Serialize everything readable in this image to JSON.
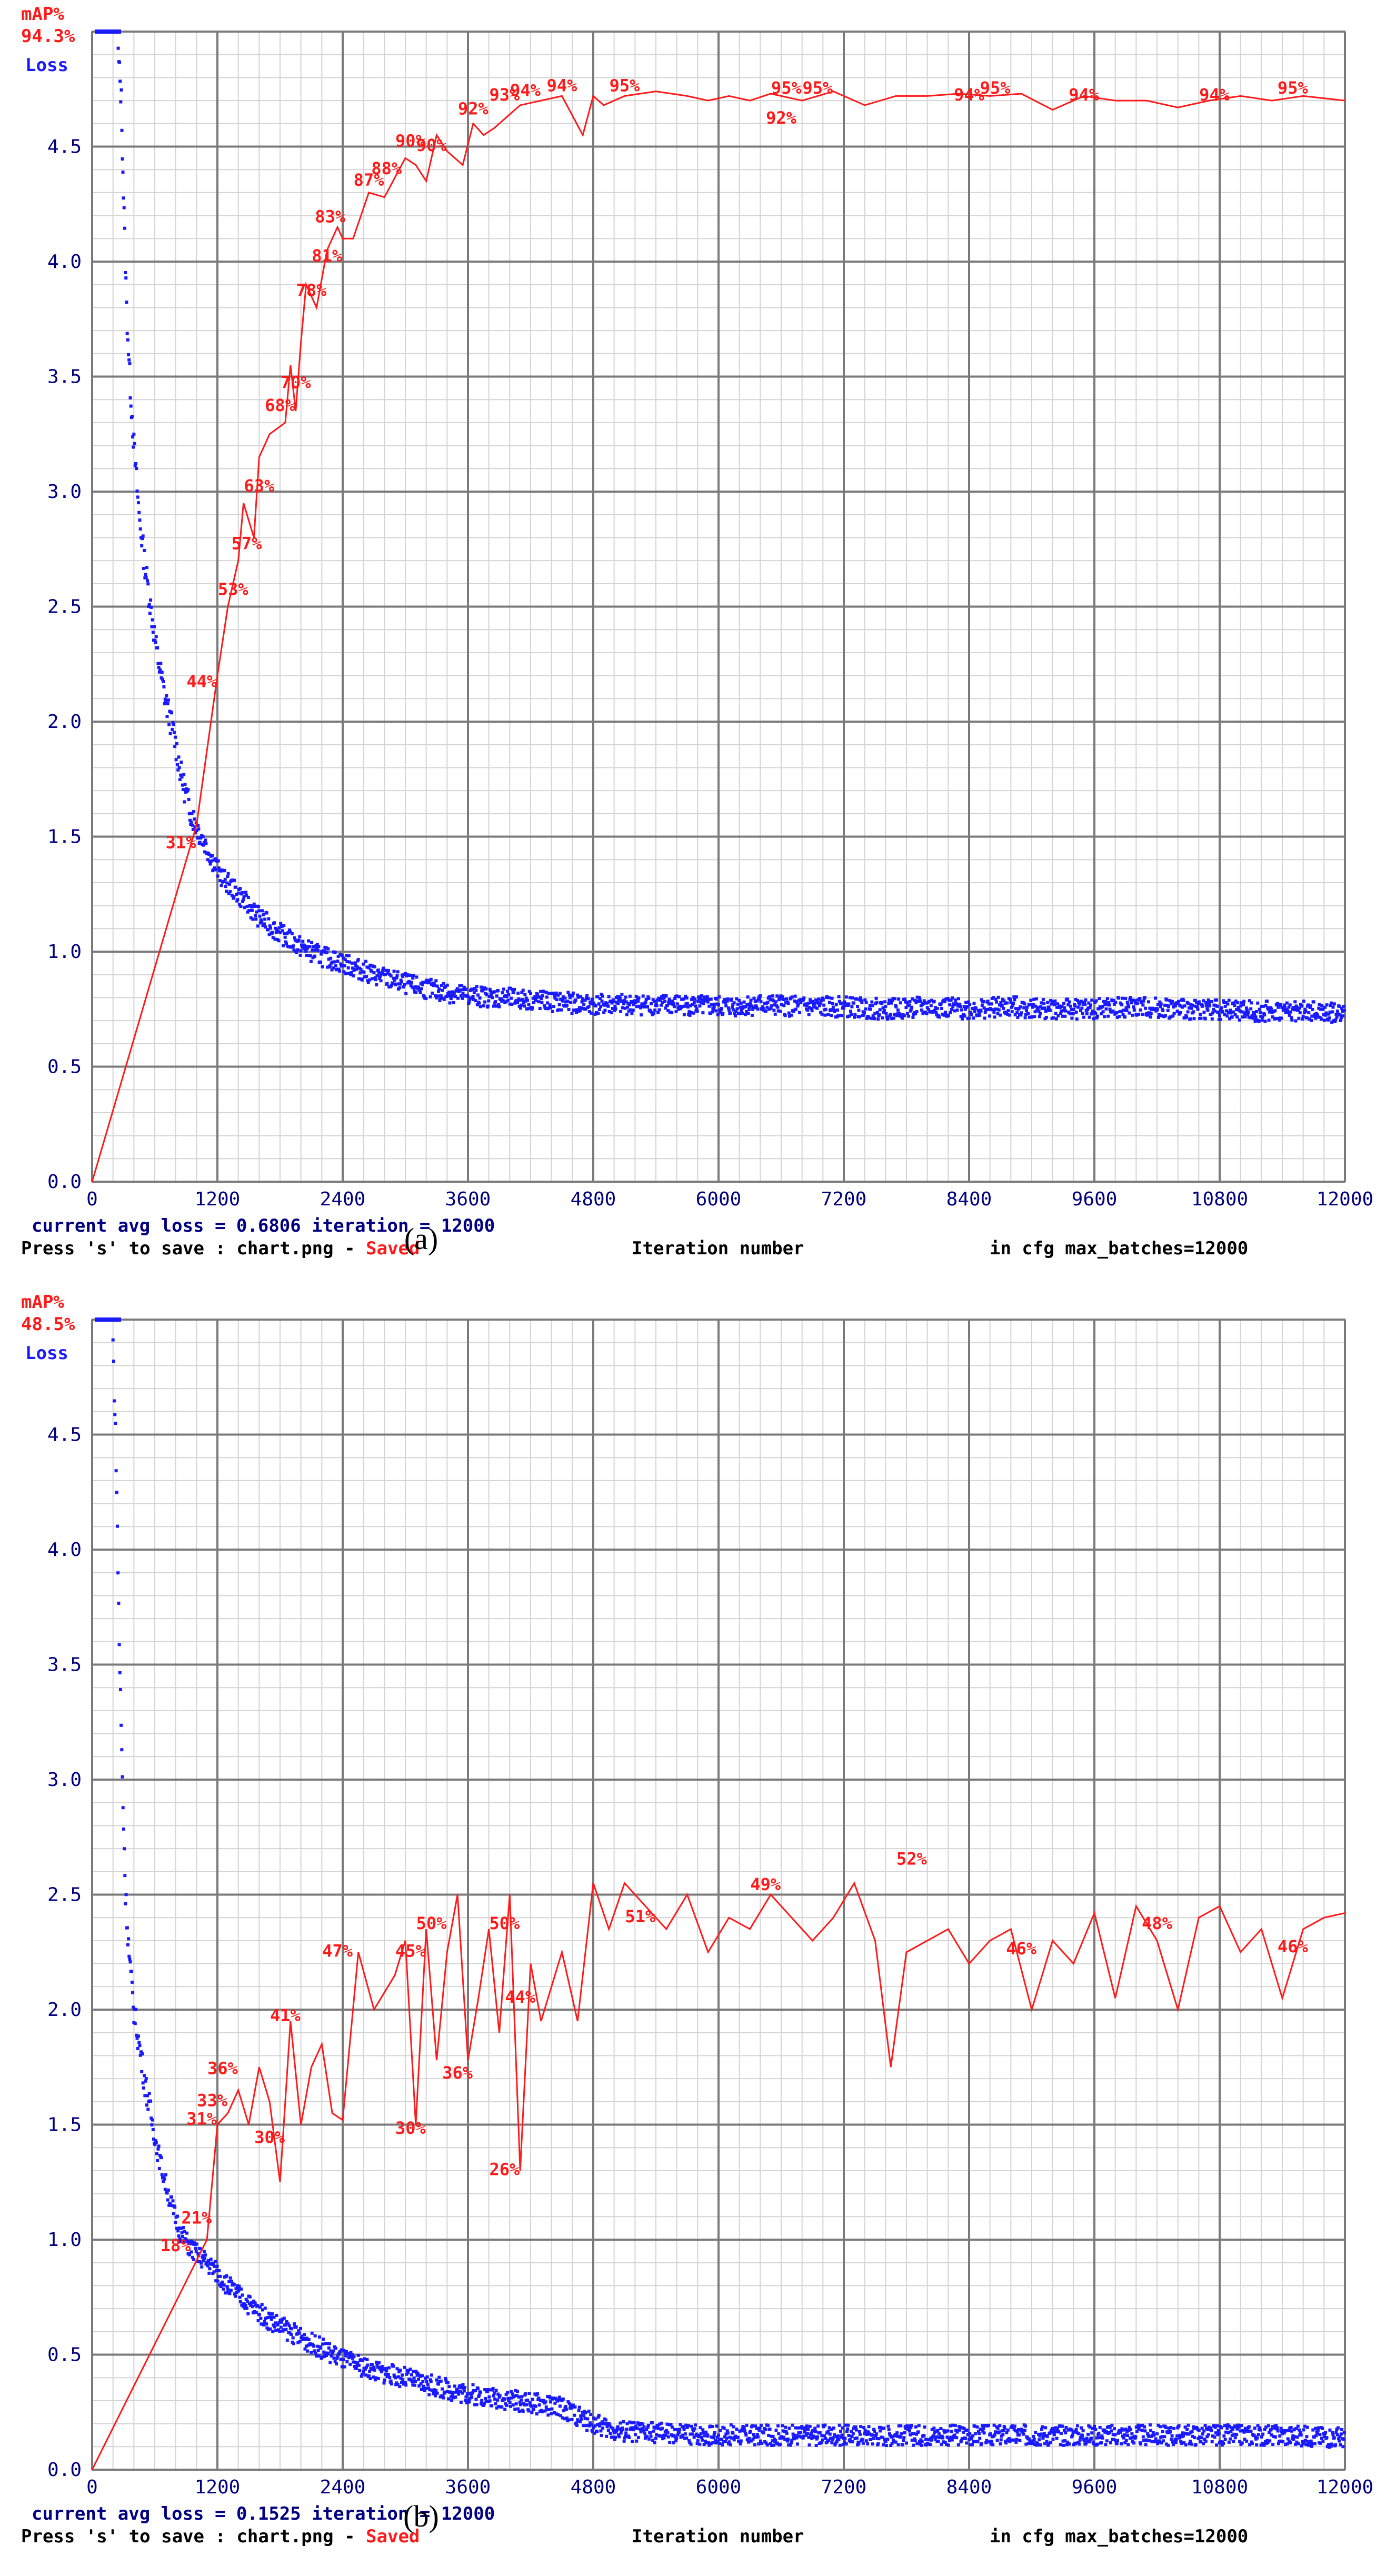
{
  "chart_data": [
    {
      "panel": "(a)",
      "type": "line",
      "title_map_label": "mAP%",
      "title_map_value": "94.3%",
      "loss_label": "Loss",
      "xlabel": "Iteration number",
      "xlim": [
        0,
        12000
      ],
      "ylim": [
        0,
        5.0
      ],
      "xticks": [
        0,
        1200,
        2400,
        3600,
        4800,
        6000,
        7200,
        8400,
        9600,
        10800,
        12000
      ],
      "yticks": [
        "0.0",
        "0.5",
        "1.0",
        "1.5",
        "2.0",
        "2.5",
        "3.0",
        "3.5",
        "4.0",
        "4.5"
      ],
      "loss_series": {
        "name": "Loss",
        "color": "#1a1aff",
        "x": [
          250,
          280,
          300,
          330,
          360,
          400,
          450,
          500,
          560,
          620,
          700,
          780,
          860,
          950,
          1050,
          1150,
          1250,
          1400,
          1600,
          1800,
          2000,
          2200,
          2400,
          2700,
          3000,
          3300,
          3600,
          3900,
          4200,
          4500,
          4800,
          5200,
          5600,
          6000,
          6400,
          6800,
          7200,
          7600,
          8000,
          8400,
          8800,
          9200,
          9600,
          10000,
          10400,
          10800,
          11200,
          11600,
          12000
        ],
        "y": [
          4.9,
          4.7,
          4.3,
          3.8,
          3.5,
          3.2,
          2.9,
          2.7,
          2.5,
          2.3,
          2.1,
          1.95,
          1.75,
          1.6,
          1.5,
          1.4,
          1.32,
          1.25,
          1.15,
          1.08,
          1.02,
          0.98,
          0.95,
          0.9,
          0.86,
          0.83,
          0.81,
          0.8,
          0.79,
          0.78,
          0.77,
          0.77,
          0.77,
          0.76,
          0.77,
          0.76,
          0.76,
          0.75,
          0.76,
          0.75,
          0.76,
          0.75,
          0.75,
          0.76,
          0.75,
          0.75,
          0.74,
          0.74,
          0.73
        ]
      },
      "map_series": {
        "name": "mAP%",
        "color": "#ff1a1a",
        "x": [
          0,
          1000,
          1200,
          1300,
          1400,
          1450,
          1550,
          1600,
          1700,
          1850,
          1900,
          1950,
          2000,
          2050,
          2150,
          2250,
          2350,
          2400,
          2500,
          2650,
          2800,
          3000,
          3100,
          3200,
          3300,
          3400,
          3550,
          3650,
          3750,
          3850,
          3950,
          4100,
          4300,
          4500,
          4700,
          4800,
          4900,
          5100,
          5400,
          5700,
          5900,
          6100,
          6300,
          6500,
          6800,
          7100,
          7400,
          7700,
          8000,
          8300,
          8600,
          8900,
          9200,
          9500,
          9800,
          10100,
          10400,
          10700,
          11000,
          11300,
          11600,
          12000
        ],
        "y": [
          0.0,
          1.55,
          2.2,
          2.5,
          2.7,
          2.95,
          2.8,
          3.15,
          3.25,
          3.3,
          3.55,
          3.35,
          3.65,
          3.9,
          3.8,
          4.05,
          4.15,
          4.1,
          4.1,
          4.3,
          4.28,
          4.45,
          4.42,
          4.35,
          4.55,
          4.48,
          4.42,
          4.6,
          4.55,
          4.58,
          4.62,
          4.68,
          4.7,
          4.72,
          4.55,
          4.72,
          4.68,
          4.72,
          4.74,
          4.72,
          4.7,
          4.72,
          4.7,
          4.73,
          4.7,
          4.74,
          4.68,
          4.72,
          4.72,
          4.73,
          4.72,
          4.73,
          4.66,
          4.72,
          4.7,
          4.7,
          4.67,
          4.7,
          4.72,
          4.7,
          4.72,
          4.7
        ]
      },
      "map_labels": [
        {
          "x": 850,
          "y": 1.45,
          "text": "31%"
        },
        {
          "x": 1050,
          "y": 2.15,
          "text": "44%"
        },
        {
          "x": 1350,
          "y": 2.55,
          "text": "53%"
        },
        {
          "x": 1480,
          "y": 2.75,
          "text": "57%"
        },
        {
          "x": 1600,
          "y": 3.0,
          "text": "63%"
        },
        {
          "x": 1800,
          "y": 3.35,
          "text": "68%"
        },
        {
          "x": 1950,
          "y": 3.45,
          "text": "70%"
        },
        {
          "x": 2100,
          "y": 3.85,
          "text": "78%"
        },
        {
          "x": 2250,
          "y": 4.0,
          "text": "81%"
        },
        {
          "x": 2280,
          "y": 4.17,
          "text": "83%"
        },
        {
          "x": 2650,
          "y": 4.33,
          "text": "87%"
        },
        {
          "x": 2820,
          "y": 4.38,
          "text": "88%"
        },
        {
          "x": 3050,
          "y": 4.5,
          "text": "90%"
        },
        {
          "x": 3250,
          "y": 4.48,
          "text": "90%"
        },
        {
          "x": 3650,
          "y": 4.64,
          "text": "92%"
        },
        {
          "x": 3950,
          "y": 4.7,
          "text": "93%"
        },
        {
          "x": 4150,
          "y": 4.72,
          "text": "94%"
        },
        {
          "x": 4500,
          "y": 4.74,
          "text": "94%"
        },
        {
          "x": 5100,
          "y": 4.74,
          "text": "95%"
        },
        {
          "x": 6650,
          "y": 4.73,
          "text": "95%"
        },
        {
          "x": 6950,
          "y": 4.73,
          "text": "95%"
        },
        {
          "x": 6600,
          "y": 4.6,
          "text": "92%"
        },
        {
          "x": 8400,
          "y": 4.7,
          "text": "94%"
        },
        {
          "x": 8650,
          "y": 4.73,
          "text": "95%"
        },
        {
          "x": 9500,
          "y": 4.7,
          "text": "94%"
        },
        {
          "x": 10750,
          "y": 4.7,
          "text": "94%"
        },
        {
          "x": 11500,
          "y": 4.73,
          "text": "95%"
        }
      ],
      "status_loss": "current avg loss = 0.6806    iteration = 12000",
      "status_save_prefix": "Press 's' to save : chart.png - ",
      "status_saved": "Saved",
      "status_cfg": "in cfg max_batches=12000"
    },
    {
      "panel": "(b)",
      "type": "line",
      "title_map_label": "mAP%",
      "title_map_value": "48.5%",
      "loss_label": "Loss",
      "xlabel": "Iteration number",
      "xlim": [
        0,
        12000
      ],
      "ylim": [
        0,
        5.0
      ],
      "xticks": [
        0,
        1200,
        2400,
        3600,
        4800,
        6000,
        7200,
        8400,
        9600,
        10800,
        12000
      ],
      "yticks": [
        "0.0",
        "0.5",
        "1.0",
        "1.5",
        "2.0",
        "2.5",
        "3.0",
        "3.5",
        "4.0",
        "4.5"
      ],
      "loss_series": {
        "name": "Loss",
        "color": "#1a1aff",
        "x": [
          200,
          230,
          260,
          290,
          320,
          360,
          400,
          450,
          500,
          560,
          620,
          700,
          780,
          860,
          950,
          1050,
          1150,
          1300,
          1500,
          1700,
          1900,
          2100,
          2400,
          2700,
          3000,
          3300,
          3600,
          3900,
          4200,
          4500,
          4800,
          5000,
          5400,
          6000,
          6600,
          7200,
          7800,
          8400,
          9000,
          9600,
          10200,
          10800,
          11400,
          12000
        ],
        "y": [
          4.9,
          4.4,
          3.6,
          3.0,
          2.5,
          2.2,
          2.0,
          1.85,
          1.7,
          1.55,
          1.4,
          1.25,
          1.12,
          1.02,
          0.96,
          0.92,
          0.88,
          0.8,
          0.72,
          0.65,
          0.6,
          0.55,
          0.48,
          0.43,
          0.4,
          0.36,
          0.33,
          0.31,
          0.29,
          0.27,
          0.2,
          0.17,
          0.16,
          0.15,
          0.15,
          0.15,
          0.15,
          0.15,
          0.15,
          0.15,
          0.15,
          0.15,
          0.15,
          0.14
        ]
      },
      "map_series": {
        "name": "mAP%",
        "color": "#ff1a1a",
        "x": [
          0,
          1100,
          1150,
          1200,
          1300,
          1400,
          1500,
          1600,
          1700,
          1800,
          1900,
          2000,
          2100,
          2200,
          2300,
          2400,
          2550,
          2700,
          2900,
          3000,
          3100,
          3200,
          3300,
          3400,
          3500,
          3600,
          3700,
          3800,
          3900,
          4000,
          4100,
          4200,
          4300,
          4500,
          4650,
          4800,
          4950,
          5100,
          5300,
          5500,
          5700,
          5900,
          6100,
          6300,
          6500,
          6700,
          6900,
          7100,
          7300,
          7500,
          7650,
          7800,
          8000,
          8200,
          8400,
          8600,
          8800,
          9000,
          9200,
          9400,
          9600,
          9800,
          10000,
          10200,
          10400,
          10600,
          10800,
          11000,
          11200,
          11400,
          11600,
          11800,
          12000
        ],
        "y": [
          0.0,
          1.0,
          1.25,
          1.5,
          1.55,
          1.65,
          1.5,
          1.75,
          1.6,
          1.25,
          1.95,
          1.5,
          1.75,
          1.85,
          1.55,
          1.52,
          2.25,
          2.0,
          2.15,
          2.3,
          1.5,
          2.35,
          1.78,
          2.25,
          2.5,
          1.78,
          2.05,
          2.35,
          1.9,
          2.5,
          1.3,
          2.2,
          1.95,
          2.25,
          1.95,
          2.55,
          2.35,
          2.55,
          2.45,
          2.35,
          2.5,
          2.25,
          2.4,
          2.35,
          2.5,
          2.4,
          2.3,
          2.4,
          2.55,
          2.3,
          1.75,
          2.25,
          2.3,
          2.35,
          2.2,
          2.3,
          2.35,
          2.0,
          2.3,
          2.2,
          2.42,
          2.05,
          2.45,
          2.3,
          2.0,
          2.4,
          2.45,
          2.25,
          2.35,
          2.05,
          2.35,
          2.4,
          2.42
        ]
      },
      "map_labels": [
        {
          "x": 800,
          "y": 0.95,
          "text": "18%"
        },
        {
          "x": 1000,
          "y": 1.07,
          "text": "21%"
        },
        {
          "x": 1050,
          "y": 1.5,
          "text": "31%"
        },
        {
          "x": 1150,
          "y": 1.58,
          "text": "33%"
        },
        {
          "x": 1250,
          "y": 1.72,
          "text": "36%"
        },
        {
          "x": 1700,
          "y": 1.42,
          "text": "30%"
        },
        {
          "x": 1850,
          "y": 1.95,
          "text": "41%"
        },
        {
          "x": 2350,
          "y": 2.23,
          "text": "47%"
        },
        {
          "x": 3050,
          "y": 1.46,
          "text": "30%"
        },
        {
          "x": 3050,
          "y": 2.23,
          "text": "45%"
        },
        {
          "x": 3250,
          "y": 2.35,
          "text": "50%"
        },
        {
          "x": 3500,
          "y": 1.7,
          "text": "36%"
        },
        {
          "x": 3950,
          "y": 2.35,
          "text": "50%"
        },
        {
          "x": 4100,
          "y": 2.03,
          "text": "44%"
        },
        {
          "x": 3950,
          "y": 1.28,
          "text": "26%"
        },
        {
          "x": 5250,
          "y": 2.38,
          "text": "51%"
        },
        {
          "x": 6450,
          "y": 2.52,
          "text": "49%"
        },
        {
          "x": 7850,
          "y": 2.63,
          "text": "52%"
        },
        {
          "x": 8900,
          "y": 2.24,
          "text": "46%"
        },
        {
          "x": 10200,
          "y": 2.35,
          "text": "48%"
        },
        {
          "x": 11500,
          "y": 2.25,
          "text": "46%"
        }
      ],
      "status_loss": "current avg loss = 0.1525    iteration = 12000",
      "status_save_prefix": "Press 's' to save : chart.png - ",
      "status_saved": "Saved",
      "status_cfg": "in cfg max_batches=12000"
    }
  ],
  "captions": [
    "(a)",
    "(b)"
  ],
  "colors": {
    "loss": "#1a1aff",
    "map": "#ff1a1a",
    "grid_major": "#7a7a7a",
    "grid_minor": "#d4d4d4",
    "text": "#000080"
  }
}
